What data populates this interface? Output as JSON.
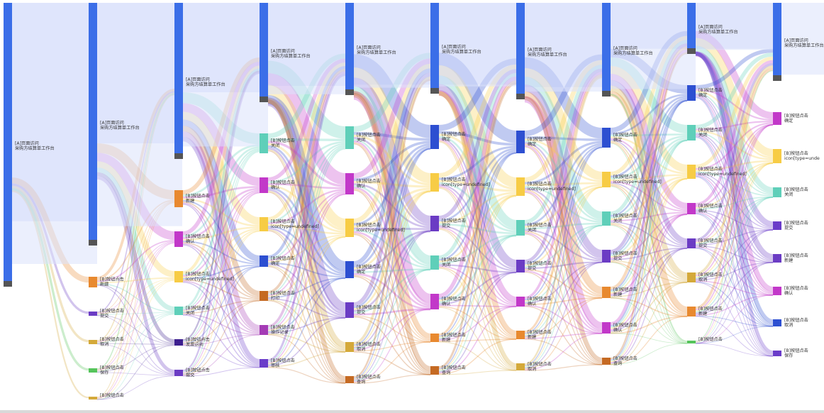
{
  "chart_data": {
    "type": "sankey",
    "title": "",
    "colors": {
      "A": "#3b6ee8",
      "xin_jian": "#e8892f",
      "que_ren": "#c238c9",
      "icon": "#f7cc45",
      "guan_bi": "#5fcfb9",
      "ti_jiao": "#6b3cc4",
      "que_ding": "#2d4fd1",
      "qu_xiao": "#d4a93a",
      "bao_cun": "#55c45b",
      "da_yin": "#c56a23",
      "fa_piao": "#3d1f8f",
      "cao_zuo": "#a43bb5",
      "shen_he": "#6a3cc9",
      "cha_xun": "#c56a23",
      "link": "#dbe2fb"
    },
    "columns": [
      {
        "nodes": [
          {
            "key": "A",
            "label1": "[A]页面访问",
            "label2": "采购方结算单工作台",
            "value": 400
          }
        ]
      },
      {
        "nodes": [
          {
            "key": "A",
            "label1": "[A]页面访问",
            "label2": "采购方结算单工作台",
            "value": 342
          },
          {
            "key": "xin_jian",
            "label1": "[B]按钮点击",
            "label2": "新建",
            "value": 15
          },
          {
            "key": "ti_jiao",
            "label1": "[B]按钮点击",
            "label2": "提交",
            "value": 6
          },
          {
            "key": "qu_xiao",
            "label1": "[B]按钮点击",
            "label2": "取消",
            "value": 6
          },
          {
            "key": "bao_cun",
            "label1": "[B]按钮点击",
            "label2": "保存",
            "value": 6
          },
          {
            "key": "qu_xiao",
            "label1": "[B]按钮点击",
            "label2": "",
            "value": 3
          }
        ]
      },
      {
        "nodes": [
          {
            "key": "A",
            "label1": "[A]页面访问",
            "label2": "采购方结算单工作台",
            "value": 220
          },
          {
            "key": "xin_jian",
            "label1": "[B]按钮点击",
            "label2": "新建",
            "value": 24
          },
          {
            "key": "que_ren",
            "label1": "[B]按钮点击",
            "label2": "确认",
            "value": 22
          },
          {
            "key": "icon",
            "label1": "[B]按钮点击",
            "label2": "icon[type=undefined]",
            "value": 16
          },
          {
            "key": "guan_bi",
            "label1": "[B]按钮点击",
            "label2": "关闭",
            "value": 12
          },
          {
            "key": "fa_piao",
            "label1": "[B]按钮点击",
            "label2": "发票识别",
            "value": 9
          },
          {
            "key": "ti_jiao",
            "label1": "[B]按钮点击",
            "label2": "提交",
            "value": 9
          }
        ]
      },
      {
        "nodes": [
          {
            "key": "A",
            "label1": "[A]页面访问",
            "label2": "采购方结算单工作台",
            "value": 140
          },
          {
            "key": "guan_bi",
            "label1": "[B]按钮点击",
            "label2": "关闭",
            "value": 28
          },
          {
            "key": "que_ren",
            "label1": "[B]按钮点击",
            "label2": "确认",
            "value": 22
          },
          {
            "key": "icon",
            "label1": "[B]按钮点击",
            "label2": "icon[type=undefined]",
            "value": 20
          },
          {
            "key": "que_ding",
            "label1": "[B]按钮点击",
            "label2": "确定",
            "value": 16
          },
          {
            "key": "da_yin",
            "label1": "[B]按钮点击",
            "label2": "打印",
            "value": 14
          },
          {
            "key": "cao_zuo",
            "label1": "[B]按钮点击",
            "label2": "操作记录",
            "value": 14
          },
          {
            "key": "shen_he",
            "label1": "[B]按钮点击",
            "label2": "审核",
            "value": 12
          }
        ]
      },
      {
        "nodes": [
          {
            "key": "A",
            "label1": "[A]页面访问",
            "label2": "采购方结算单工作台",
            "value": 130
          },
          {
            "key": "guan_bi",
            "label1": "[B]按钮点击",
            "label2": "关闭",
            "value": 32
          },
          {
            "key": "que_ren",
            "label1": "[B]按钮点击",
            "label2": "确认",
            "value": 30
          },
          {
            "key": "icon",
            "label1": "[B]按钮点击",
            "label2": "icon[type=undefined]",
            "value": 26
          },
          {
            "key": "que_ding",
            "label1": "[B]按钮点击",
            "label2": "确定",
            "value": 24
          },
          {
            "key": "ti_jiao",
            "label1": "[B]按钮点击",
            "label2": "提交",
            "value": 22
          },
          {
            "key": "qu_xiao",
            "label1": "[B]按钮点击",
            "label2": "取消",
            "value": 14
          },
          {
            "key": "cha_xun",
            "label1": "[B]按钮点击",
            "label2": "查询",
            "value": 10
          }
        ]
      },
      {
        "nodes": [
          {
            "key": "A",
            "label1": "[A]页面访问",
            "label2": "采购方结算单工作台",
            "value": 128
          },
          {
            "key": "que_ding",
            "label1": "[B]按钮点击",
            "label2": "确定",
            "value": 34
          },
          {
            "key": "icon",
            "label1": "[B]按钮点击",
            "label2": "icon[type=undefined]",
            "value": 26
          },
          {
            "key": "ti_jiao",
            "label1": "[B]按钮点击",
            "label2": "提交",
            "value": 22
          },
          {
            "key": "guan_bi",
            "label1": "[B]按钮点击",
            "label2": "关闭",
            "value": 20
          },
          {
            "key": "que_ren",
            "label1": "[B]按钮点击",
            "label2": "确认",
            "value": 22
          },
          {
            "key": "xin_jian",
            "label1": "[B]按钮点击",
            "label2": "新建",
            "value": 12
          },
          {
            "key": "cha_xun",
            "label1": "[B]按钮点击",
            "label2": "查询",
            "value": 12
          }
        ]
      },
      {
        "nodes": [
          {
            "key": "A",
            "label1": "[A]页面访问",
            "label2": "采购方结算单工作台",
            "value": 136
          },
          {
            "key": "que_ding",
            "label1": "[B]按钮点击",
            "label2": "确定",
            "value": 32
          },
          {
            "key": "icon",
            "label1": "[B]按钮点击",
            "label2": "icon[type=undefined]",
            "value": 26
          },
          {
            "key": "guan_bi",
            "label1": "[B]按钮点击",
            "label2": "关闭",
            "value": 22
          },
          {
            "key": "ti_jiao",
            "label1": "[B]按钮点击",
            "label2": "提交",
            "value": 18
          },
          {
            "key": "que_ren",
            "label1": "[B]按钮点击",
            "label2": "确认",
            "value": 14
          },
          {
            "key": "xin_jian",
            "label1": "[B]按钮点击",
            "label2": "新建",
            "value": 12
          },
          {
            "key": "qu_xiao",
            "label1": "[B]按钮点击",
            "label2": "取消",
            "value": 10
          }
        ]
      },
      {
        "nodes": [
          {
            "key": "A",
            "label1": "[A]页面访问",
            "label2": "采购方结算单工作台",
            "value": 132
          },
          {
            "key": "que_ding",
            "label1": "[B]按钮点击",
            "label2": "确定",
            "value": 28
          },
          {
            "key": "icon",
            "label1": "[B]按钮点击",
            "label2": "icon[type=undefined]",
            "value": 22
          },
          {
            "key": "guan_bi",
            "label1": "[B]按钮点击",
            "label2": "关闭",
            "value": 20
          },
          {
            "key": "ti_jiao",
            "label1": "[B]按钮点击",
            "label2": "提交",
            "value": 18
          },
          {
            "key": "xin_jian",
            "label1": "[B]按钮点击",
            "label2": "新建",
            "value": 16
          },
          {
            "key": "que_ren",
            "label1": "[B]按钮点击",
            "label2": "确认",
            "value": 16
          },
          {
            "key": "cha_xun",
            "label1": "[B]按钮点击",
            "label2": "查询",
            "value": 10
          }
        ]
      },
      {
        "nodes": [
          {
            "key": "A",
            "label1": "[A]页面访问",
            "label2": "采购方结算单工作台",
            "value": 72
          },
          {
            "key": "que_ding",
            "label1": "[B]按钮点击",
            "label2": "确定",
            "value": 22
          },
          {
            "key": "guan_bi",
            "label1": "[B]按钮点击",
            "label2": "关闭",
            "value": 22
          },
          {
            "key": "icon",
            "label1": "[B]按钮点击",
            "label2": "icon[type=undefined]",
            "value": 20
          },
          {
            "key": "que_ren",
            "label1": "[B]按钮点击",
            "label2": "确认",
            "value": 16
          },
          {
            "key": "ti_jiao",
            "label1": "[B]按钮点击",
            "label2": "提交",
            "value": 14
          },
          {
            "key": "qu_xiao",
            "label1": "[B]按钮点击",
            "label2": "取消",
            "value": 14
          },
          {
            "key": "xin_jian",
            "label1": "[B]按钮点击",
            "label2": "新建",
            "value": 14
          },
          {
            "key": "bao_cun",
            "label1": "[B]按钮点击",
            "label2": "",
            "value": 4
          }
        ]
      },
      {
        "nodes": [
          {
            "key": "A",
            "label1": "[A]页面访问",
            "label2": "采购方结算单工作台",
            "value": 110
          },
          {
            "key": "que_ren",
            "label1": "[B]按钮点击",
            "label2": "确定",
            "value": 18
          },
          {
            "key": "icon",
            "label1": "[B]按钮点击",
            "label2": "icon[type=unde",
            "value": 20
          },
          {
            "key": "guan_bi",
            "label1": "[B]按钮点击",
            "label2": "关闭",
            "value": 14
          },
          {
            "key": "shen_he",
            "label1": "[B]按钮点击",
            "label2": "提交",
            "value": 12
          },
          {
            "key": "ti_jiao",
            "label1": "[B]按钮点击",
            "label2": "新建",
            "value": 12
          },
          {
            "key": "que_ren",
            "label1": "[B]按钮点击",
            "label2": "确认",
            "value": 12
          },
          {
            "key": "que_ding",
            "label1": "[B]按钮点击",
            "label2": "取消",
            "value": 10
          },
          {
            "key": "shen_he",
            "label1": "[B]按钮点击",
            "label2": "保存",
            "value": 8
          }
        ]
      }
    ]
  }
}
